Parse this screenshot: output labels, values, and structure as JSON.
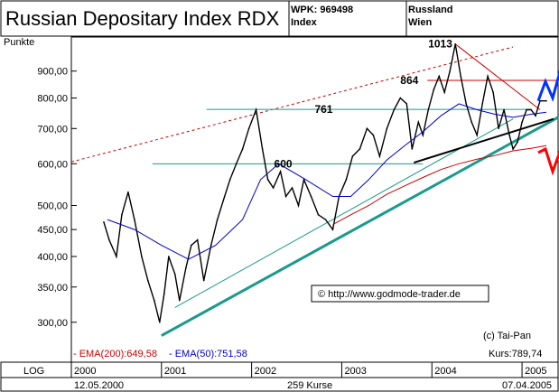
{
  "header": {
    "title": "Russian Depositary Index RDX",
    "wpk": "WPK: 969498",
    "type": "Index",
    "country": "Russland",
    "exchange": "Wien"
  },
  "footer": {
    "scale": "LOG",
    "start_date": "12.05.2000",
    "count": "259 Kurse",
    "end_date": "07.04.2005",
    "ema200": "- EMA(200):649,58",
    "ema50": "- EMA(50):751,58",
    "author": "(c) Tai-Pan",
    "kurs": "Kurs:789,74",
    "url": "© http://www.godmode-trader.de"
  },
  "colors": {
    "price": "#000000",
    "ema200": "#cc0000",
    "ema50": "#0000cc",
    "support": "#1a9a8a",
    "resistance": "#cc0000",
    "projection_up": "#0033ff",
    "projection_down": "#ff0000"
  },
  "chart_data": {
    "type": "line",
    "title": "Russian Depositary Index RDX",
    "ylabel": "Punkte",
    "yscale": "log",
    "ylim": [
      260,
      1020
    ],
    "y_ticks": [
      "300,00",
      "350,00",
      "400,00",
      "450,00",
      "500,00",
      "600,00",
      "700,00",
      "800,00",
      "900,00"
    ],
    "y_tick_values": [
      300,
      350,
      400,
      450,
      500,
      600,
      700,
      800,
      900
    ],
    "x_ticks": [
      "2000",
      "2001",
      "2002",
      "2003",
      "2004",
      "2005"
    ],
    "x_tick_values": [
      2000.0,
      2001.0,
      2002.0,
      2003.0,
      2004.0,
      2005.0
    ],
    "xlim": [
      2000.0,
      2005.4
    ],
    "series": [
      {
        "name": "Kurs",
        "x": [
          2000.36,
          2000.42,
          2000.5,
          2000.56,
          2000.63,
          2000.7,
          2000.78,
          2000.85,
          2000.92,
          2000.98,
          2001.03,
          2001.08,
          2001.15,
          2001.2,
          2001.27,
          2001.33,
          2001.4,
          2001.47,
          2001.55,
          2001.62,
          2001.7,
          2001.76,
          2001.83,
          2001.9,
          2001.97,
          2002.05,
          2002.12,
          2002.18,
          2002.24,
          2002.32,
          2002.38,
          2002.45,
          2002.52,
          2002.58,
          2002.66,
          2002.74,
          2002.82,
          2002.9,
          2002.97,
          2003.05,
          2003.12,
          2003.2,
          2003.28,
          2003.35,
          2003.42,
          2003.5,
          2003.58,
          2003.65,
          2003.72,
          2003.78,
          2003.85,
          2003.9,
          2003.96,
          2004.02,
          2004.08,
          2004.14,
          2004.2,
          2004.26,
          2004.32,
          2004.38,
          2004.44,
          2004.5,
          2004.56,
          2004.62,
          2004.68,
          2004.74,
          2004.8,
          2004.86,
          2004.9,
          2004.95,
          2005.0,
          2005.05,
          2005.1,
          2005.15,
          2005.2,
          2005.27
        ],
        "y": [
          465,
          430,
          400,
          480,
          530,
          470,
          400,
          360,
          330,
          300,
          340,
          400,
          370,
          330,
          380,
          420,
          430,
          360,
          420,
          470,
          520,
          560,
          600,
          640,
          700,
          760,
          640,
          560,
          540,
          580,
          520,
          540,
          500,
          560,
          520,
          480,
          470,
          450,
          520,
          560,
          620,
          640,
          700,
          680,
          620,
          700,
          760,
          800,
          780,
          640,
          720,
          680,
          760,
          830,
          880,
          820,
          900,
          1013,
          880,
          780,
          720,
          680,
          780,
          880,
          820,
          700,
          760,
          680,
          640,
          660,
          720,
          760,
          760,
          740,
          790,
          790
        ]
      },
      {
        "name": "EMA(200)",
        "x": [
          2002.9,
          2003.1,
          2003.3,
          2003.5,
          2003.7,
          2003.9,
          2004.1,
          2004.3,
          2004.5,
          2004.7,
          2004.9,
          2005.1,
          2005.27
        ],
        "y": [
          460,
          480,
          500,
          525,
          545,
          565,
          585,
          600,
          612,
          622,
          635,
          642,
          650
        ]
      },
      {
        "name": "EMA(50)",
        "x": [
          2000.4,
          2000.7,
          2001.0,
          2001.3,
          2001.6,
          2001.9,
          2002.1,
          2002.3,
          2002.6,
          2002.9,
          2003.1,
          2003.3,
          2003.5,
          2003.7,
          2003.9,
          2004.1,
          2004.3,
          2004.5,
          2004.7,
          2004.9,
          2005.1,
          2005.27
        ],
        "y": [
          470,
          450,
          420,
          395,
          420,
          470,
          560,
          600,
          560,
          520,
          520,
          560,
          610,
          650,
          690,
          740,
          780,
          760,
          745,
          735,
          745,
          752
        ]
      }
    ],
    "annotations": [
      {
        "text": "1013",
        "x": 2004.26,
        "y": 1013
      },
      {
        "text": "864",
        "x": 2003.95,
        "y": 864
      },
      {
        "text": "761",
        "x": 2003.0,
        "y": 761
      },
      {
        "text": "600",
        "x": 2002.55,
        "y": 600
      }
    ],
    "lines": [
      {
        "name": "support-thick",
        "x": [
          2001.0,
          2005.4
        ],
        "y": [
          283,
          735
        ]
      },
      {
        "name": "support-thin",
        "x": [
          2001.15,
          2004.9
        ],
        "y": [
          320,
          730
        ]
      },
      {
        "name": "support-black",
        "x": [
          2003.8,
          2005.35
        ],
        "y": [
          603,
          730
        ]
      },
      {
        "name": "channel-upper-dotted",
        "x": [
          2000.0,
          2004.9
        ],
        "y": [
          605,
          1000
        ]
      },
      {
        "name": "resistance-1013",
        "x": [
          2004.26,
          2005.2
        ],
        "y": [
          1013,
          760
        ]
      },
      {
        "name": "resistance-864-h",
        "x": [
          2003.95,
          2005.4
        ],
        "y": [
          864,
          864
        ]
      },
      {
        "name": "level-761-h",
        "x": [
          2001.5,
          2005.1
        ],
        "y": [
          761,
          761
        ]
      },
      {
        "name": "level-600-h",
        "x": [
          2000.9,
          2003.9
        ],
        "y": [
          600,
          600
        ]
      }
    ],
    "projections": [
      {
        "name": "blue-projection",
        "x": [
          2005.18,
          2005.26,
          2005.34,
          2005.46
        ],
        "y": [
          790,
          860,
          800,
          950
        ]
      },
      {
        "name": "red-projection",
        "x": [
          2005.18,
          2005.26,
          2005.34,
          2005.46
        ],
        "y": [
          630,
          640,
          580,
          660
        ]
      }
    ]
  }
}
